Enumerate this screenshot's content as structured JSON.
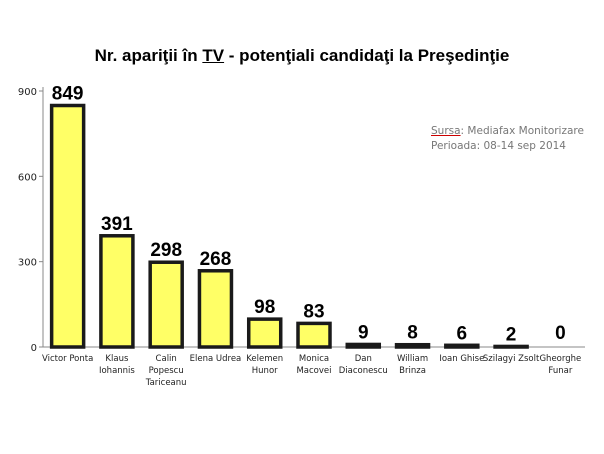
{
  "title": {
    "before": "Nr. apariţii în ",
    "underlined": "TV",
    "after": " - potenţiali candidaţi la Preşedinţie"
  },
  "source": {
    "label": "Sursa",
    "text": ": Mediafax Monitorizare",
    "period": "Perioada: 08-14 sep 2014"
  },
  "colors": {
    "bar_fill": "#ffff66",
    "bar_outline": "#1a1a1a",
    "axis": "#888888"
  },
  "chart_data": {
    "type": "bar",
    "title": "Nr. apariţii în TV - potenţiali candidaţi la Preşedinţie",
    "categories": [
      [
        "Victor Ponta"
      ],
      [
        "Klaus",
        "Iohannis"
      ],
      [
        "Calin",
        "Popescu",
        "Tariceanu"
      ],
      [
        "Elena Udrea"
      ],
      [
        "Kelemen",
        "Hunor"
      ],
      [
        "Monica",
        "Macovei"
      ],
      [
        "Dan",
        "Diaconescu"
      ],
      [
        "William",
        "Brinza"
      ],
      [
        "Ioan Ghise"
      ],
      [
        "Szilagyi Zsolt"
      ],
      [
        "Gheorghe",
        "Funar"
      ]
    ],
    "values": [
      849,
      391,
      298,
      268,
      98,
      83,
      9,
      8,
      6,
      2,
      0
    ],
    "yticks": [
      0,
      300,
      600,
      900
    ],
    "ylim": [
      0,
      900
    ],
    "grid": false,
    "legend": "none"
  }
}
